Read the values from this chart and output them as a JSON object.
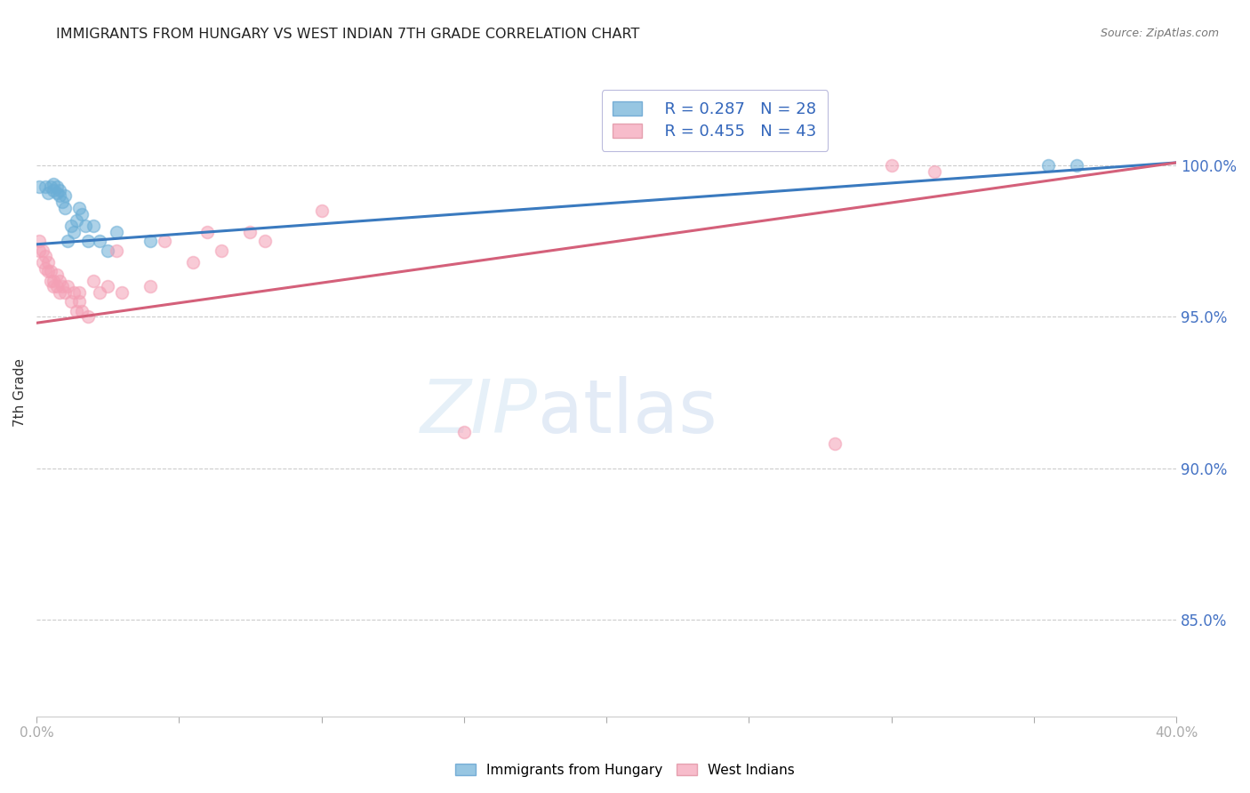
{
  "title": "IMMIGRANTS FROM HUNGARY VS WEST INDIAN 7TH GRADE CORRELATION CHART",
  "source": "Source: ZipAtlas.com",
  "ylabel": "7th Grade",
  "ytick_labels": [
    "100.0%",
    "95.0%",
    "90.0%",
    "85.0%"
  ],
  "ytick_values": [
    1.0,
    0.95,
    0.9,
    0.85
  ],
  "xmin": 0.0,
  "xmax": 0.4,
  "ymin": 0.818,
  "ymax": 1.032,
  "legend_blue_r": "R = 0.287",
  "legend_blue_n": "N = 28",
  "legend_pink_r": "R = 0.455",
  "legend_pink_n": "N = 43",
  "legend_label_blue": "Immigrants from Hungary",
  "legend_label_pink": "West Indians",
  "blue_color": "#6baed6",
  "pink_color": "#f4a0b5",
  "blue_line_color": "#3a7abf",
  "pink_line_color": "#d4607a",
  "blue_scatter_x": [
    0.001,
    0.003,
    0.004,
    0.005,
    0.006,
    0.006,
    0.007,
    0.007,
    0.008,
    0.008,
    0.009,
    0.01,
    0.01,
    0.011,
    0.012,
    0.013,
    0.014,
    0.015,
    0.016,
    0.017,
    0.018,
    0.02,
    0.022,
    0.025,
    0.028,
    0.04,
    0.355,
    0.365
  ],
  "blue_scatter_y": [
    0.993,
    0.993,
    0.991,
    0.993,
    0.992,
    0.994,
    0.991,
    0.993,
    0.99,
    0.992,
    0.988,
    0.986,
    0.99,
    0.975,
    0.98,
    0.978,
    0.982,
    0.986,
    0.984,
    0.98,
    0.975,
    0.98,
    0.975,
    0.972,
    0.978,
    0.975,
    1.0,
    1.0
  ],
  "pink_scatter_x": [
    0.001,
    0.001,
    0.002,
    0.002,
    0.003,
    0.003,
    0.004,
    0.004,
    0.005,
    0.005,
    0.006,
    0.006,
    0.007,
    0.007,
    0.008,
    0.008,
    0.009,
    0.01,
    0.011,
    0.012,
    0.013,
    0.014,
    0.015,
    0.015,
    0.016,
    0.018,
    0.02,
    0.022,
    0.025,
    0.028,
    0.03,
    0.04,
    0.045,
    0.055,
    0.06,
    0.065,
    0.075,
    0.08,
    0.1,
    0.15,
    0.28,
    0.3,
    0.315
  ],
  "pink_scatter_y": [
    0.975,
    0.972,
    0.968,
    0.972,
    0.97,
    0.966,
    0.968,
    0.965,
    0.962,
    0.965,
    0.96,
    0.962,
    0.96,
    0.964,
    0.958,
    0.962,
    0.96,
    0.958,
    0.96,
    0.955,
    0.958,
    0.952,
    0.958,
    0.955,
    0.952,
    0.95,
    0.962,
    0.958,
    0.96,
    0.972,
    0.958,
    0.96,
    0.975,
    0.968,
    0.978,
    0.972,
    0.978,
    0.975,
    0.985,
    0.912,
    0.908,
    1.0,
    0.998
  ],
  "blue_line_x": [
    0.0,
    0.4
  ],
  "blue_line_y": [
    0.974,
    1.001
  ],
  "pink_line_x": [
    0.0,
    0.4
  ],
  "pink_line_y": [
    0.948,
    1.001
  ],
  "xtick_positions": [
    0.0,
    0.05,
    0.1,
    0.15,
    0.2,
    0.25,
    0.3,
    0.35,
    0.4
  ],
  "xtick_labels": [
    "0.0%",
    "",
    "",
    "",
    "",
    "",
    "",
    "",
    "40.0%"
  ]
}
